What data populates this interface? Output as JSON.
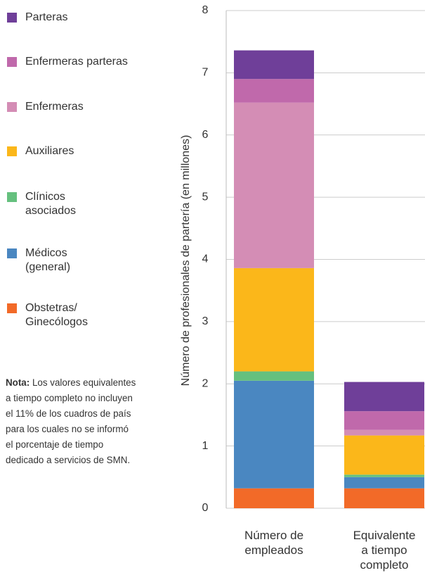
{
  "chart_data": {
    "type": "stacked_bar",
    "categories": [
      "Número de\nempleados",
      "Equivalente\na tiempo\ncompleto"
    ],
    "y_label": "Número de profesionales de partería (en millones)",
    "ylim": [
      0,
      8
    ],
    "yticks": [
      0,
      1,
      2,
      3,
      4,
      5,
      6,
      7,
      8
    ],
    "grid": true,
    "series": [
      {
        "name": "Obstetras/\nGinecólogos",
        "color": "#f26a28",
        "values": [
          0.32,
          0.32
        ]
      },
      {
        "name": "Médicos\n(general)",
        "color": "#4a87c1",
        "values": [
          1.73,
          0.18
        ]
      },
      {
        "name": "Clínicos\nasociados",
        "color": "#65c07e",
        "values": [
          0.15,
          0.04
        ]
      },
      {
        "name": "Auxiliares",
        "color": "#fbb71a",
        "values": [
          1.66,
          0.63
        ]
      },
      {
        "name": "Enfermeras",
        "color": "#d48db5",
        "values": [
          2.66,
          0.09
        ]
      },
      {
        "name": "Enfermeras parteras",
        "color": "#c069ab",
        "values": [
          0.38,
          0.3
        ]
      },
      {
        "name": "Parteras",
        "color": "#6f3f99",
        "values": [
          0.46,
          0.47
        ]
      }
    ],
    "note_label": "Nota:",
    "note": " Los valores equivalentes\na tiempo completo no incluyen\nel 11% de los cuadros de país\npara los cuales no se informó\nel porcentaje de tiempo\ndedicado a servicios de SMN."
  }
}
